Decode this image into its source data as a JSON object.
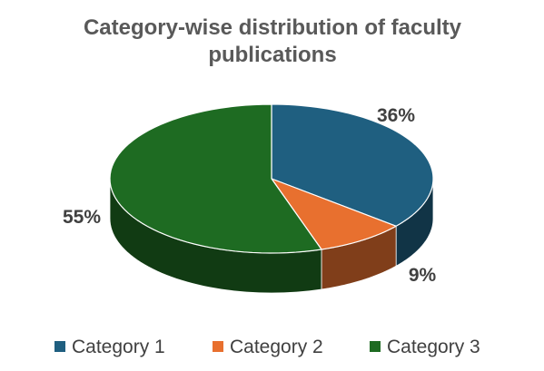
{
  "chart_data": {
    "type": "pie",
    "title_lines": [
      "Category-wise distribution of faculty",
      "publications"
    ],
    "categories": [
      "Category 1",
      "Category 2",
      "Category 3"
    ],
    "values": [
      36,
      9,
      55
    ],
    "data_labels": [
      "36%",
      "9%",
      "55%"
    ],
    "colors": [
      "#1F5F80",
      "#E8702F",
      "#1E6B22"
    ],
    "legend_position": "bottom",
    "three_d": true
  }
}
